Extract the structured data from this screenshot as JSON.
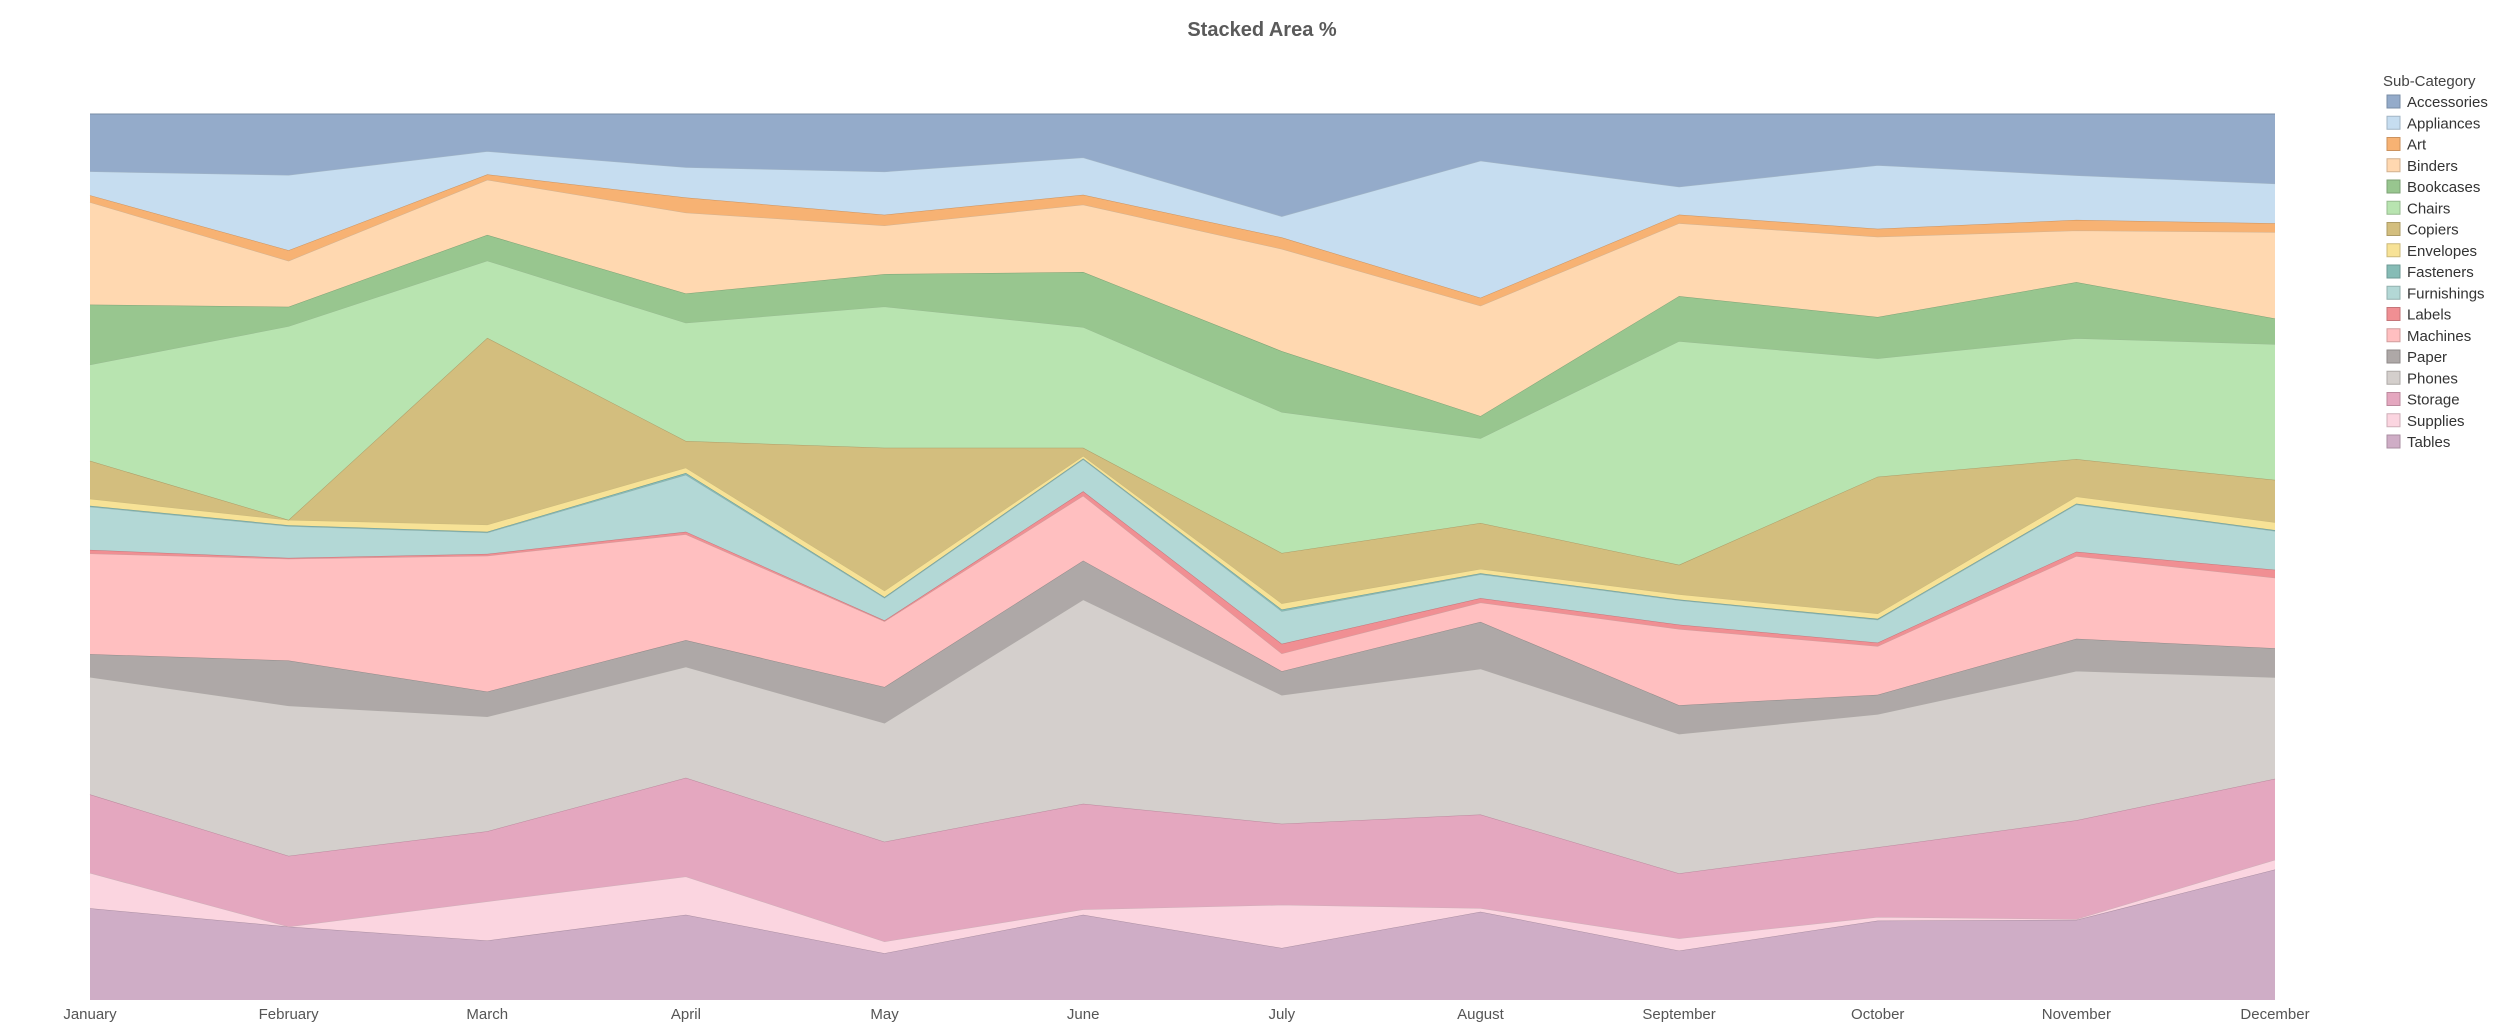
{
  "chart_data": {
    "type": "area",
    "stacking": "percent",
    "title": "Stacked Area %",
    "xlabel": "",
    "ylabel": "",
    "ylim": [
      0,
      100
    ],
    "legend_title": "Sub-Category",
    "legend_position": "right",
    "grid": false,
    "categories": [
      "January",
      "February",
      "March",
      "April",
      "May",
      "June",
      "July",
      "August",
      "September",
      "October",
      "November",
      "December"
    ],
    "series": [
      {
        "name": "Tables",
        "color": "#cfadc6",
        "values": [
          10.4,
          8.3,
          6.7,
          9.6,
          5.2,
          9.6,
          5.9,
          10.0,
          5.7,
          9.0,
          9.0,
          14.8
        ]
      },
      {
        "name": "Supplies",
        "color": "#fbd5e0",
        "values": [
          4.0,
          0.0,
          4.4,
          4.3,
          1.3,
          0.6,
          4.9,
          0.4,
          1.4,
          0.4,
          0.1,
          1.1
        ]
      },
      {
        "name": "Storage",
        "color": "#e4a7bf",
        "values": [
          8.9,
          8.0,
          7.9,
          11.1,
          11.1,
          11.9,
          9.2,
          10.6,
          7.5,
          7.9,
          11.1,
          9.2
        ]
      },
      {
        "name": "Phones",
        "color": "#d4cfcc",
        "values": [
          13.3,
          17.0,
          12.9,
          12.5,
          13.2,
          23.0,
          14.6,
          16.5,
          16.1,
          15.1,
          16.8,
          11.5
        ]
      },
      {
        "name": "Paper",
        "color": "#aea8a7",
        "values": [
          2.6,
          5.1,
          2.8,
          3.0,
          4.0,
          4.4,
          2.7,
          5.3,
          3.3,
          2.2,
          3.6,
          3.3
        ]
      },
      {
        "name": "Machines",
        "color": "#ffbfc0",
        "values": [
          11.4,
          11.5,
          15.3,
          11.9,
          7.3,
          7.3,
          2.0,
          2.2,
          8.8,
          5.5,
          9.3,
          8.0
        ]
      },
      {
        "name": "Labels",
        "color": "#f08f93",
        "values": [
          0.4,
          0.1,
          0.2,
          0.3,
          0.1,
          0.5,
          1.1,
          0.5,
          0.5,
          0.4,
          0.5,
          0.9
        ]
      },
      {
        "name": "Furnishings",
        "color": "#b3d8d6",
        "values": [
          4.9,
          3.6,
          2.4,
          6.4,
          2.5,
          3.6,
          3.7,
          2.7,
          2.8,
          2.6,
          5.3,
          4.4
        ]
      },
      {
        "name": "Fasteners",
        "color": "#86bcb6",
        "values": [
          0.1,
          0.1,
          0.1,
          0.2,
          0.1,
          0.1,
          0.2,
          0.1,
          0.1,
          0.1,
          0.1,
          0.1
        ]
      },
      {
        "name": "Envelopes",
        "color": "#f7e296",
        "values": [
          0.8,
          0.6,
          0.8,
          0.6,
          0.7,
          0.3,
          0.7,
          0.5,
          0.6,
          0.6,
          0.8,
          0.9
        ]
      },
      {
        "name": "Copiers",
        "color": "#d3be7e",
        "values": [
          4.3,
          0.0,
          21.0,
          3.0,
          15.9,
          0.9,
          5.7,
          5.2,
          3.4,
          15.5,
          4.2,
          4.8
        ]
      },
      {
        "name": "Chairs",
        "color": "#b8e4b0",
        "values": [
          10.9,
          21.9,
          8.7,
          13.3,
          15.7,
          13.6,
          16.0,
          9.6,
          25.8,
          13.4,
          13.6,
          15.4
        ]
      },
      {
        "name": "Bookcases",
        "color": "#98c68f",
        "values": [
          6.8,
          2.2,
          2.9,
          3.3,
          3.6,
          6.2,
          6.9,
          2.5,
          5.2,
          4.7,
          6.3,
          2.9
        ]
      },
      {
        "name": "Binders",
        "color": "#ffd8b0",
        "values": [
          11.6,
          5.2,
          6.2,
          9.1,
          5.4,
          7.6,
          11.6,
          12.5,
          8.4,
          9.1,
          5.8,
          9.8
        ]
      },
      {
        "name": "Art",
        "color": "#f7b273",
        "values": [
          0.8,
          1.2,
          0.6,
          1.7,
          1.2,
          1.1,
          1.3,
          0.9,
          1.0,
          0.9,
          1.2,
          1.0
        ]
      },
      {
        "name": "Appliances",
        "color": "#c6ddf0",
        "values": [
          2.7,
          8.5,
          2.6,
          3.4,
          4.8,
          4.2,
          2.4,
          15.5,
          3.2,
          7.2,
          5.0,
          4.5
        ]
      },
      {
        "name": "Accessories",
        "color": "#94abca",
        "values": [
          6.5,
          6.9,
          4.2,
          6.0,
          6.4,
          4.9,
          11.6,
          5.3,
          8.4,
          5.8,
          6.9,
          7.9
        ]
      }
    ],
    "legend_order": [
      "Accessories",
      "Appliances",
      "Art",
      "Binders",
      "Bookcases",
      "Chairs",
      "Copiers",
      "Envelopes",
      "Fasteners",
      "Furnishings",
      "Labels",
      "Machines",
      "Paper",
      "Phones",
      "Storage",
      "Supplies",
      "Tables"
    ]
  }
}
